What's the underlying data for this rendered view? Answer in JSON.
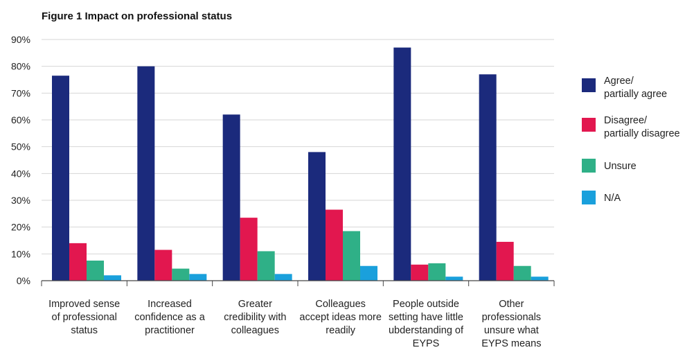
{
  "chart_data": {
    "type": "bar",
    "title": "Figure 1 Impact on professional status",
    "xlabel": "",
    "ylabel": "",
    "ylim": [
      0,
      90
    ],
    "yticks": [
      "0%",
      "10%",
      "20%",
      "30%",
      "40%",
      "50%",
      "60%",
      "70%",
      "80%",
      "90%"
    ],
    "grid": true,
    "legend_position": "right",
    "categories": [
      [
        "Improved sense",
        "of professional",
        "status"
      ],
      [
        "Increased",
        "confidence as a",
        "practitioner"
      ],
      [
        "Greater",
        "credibility with",
        "colleagues"
      ],
      [
        "Colleagues",
        "accept ideas more",
        "readily"
      ],
      [
        "People outside",
        "setting have little",
        "ubderstanding of",
        "EYPS"
      ],
      [
        "Other",
        "professionals",
        "unsure what",
        "EYPS means"
      ]
    ],
    "series": [
      {
        "name": [
          "Agree/",
          "partially agree"
        ],
        "color": "#1b2a7c",
        "values": [
          76.5,
          80,
          62,
          48,
          87,
          77
        ]
      },
      {
        "name": [
          "Disagree/",
          "partially disagree"
        ],
        "color": "#e2174f",
        "values": [
          14,
          11.5,
          23.5,
          26.5,
          6,
          14.5
        ]
      },
      {
        "name": [
          "Unsure"
        ],
        "color": "#2fb087",
        "values": [
          7.5,
          4.5,
          11,
          18.5,
          6.5,
          5.5
        ]
      },
      {
        "name": [
          "N/A"
        ],
        "color": "#1aa0dc",
        "values": [
          2,
          2.5,
          2.5,
          5.5,
          1.5,
          1.5
        ]
      }
    ]
  }
}
